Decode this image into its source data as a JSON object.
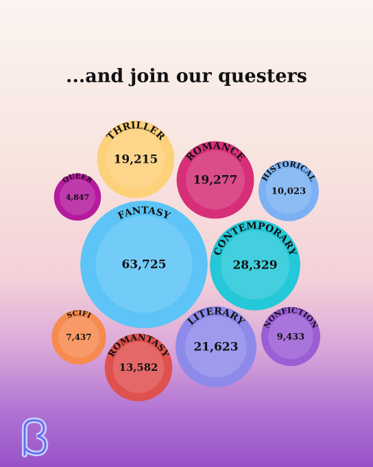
{
  "chart_data": {
    "type": "bubble",
    "title": "...and join our questers",
    "categories": [
      "THRILLER",
      "ROMANCE",
      "HISTORICAL",
      "QUEER",
      "FANTASY",
      "CONTEMPORARY",
      "SCIFI",
      "LITERARY",
      "NONFICTION",
      "ROMANTASY"
    ],
    "values": [
      19215,
      19277,
      10023,
      4847,
      63725,
      28329,
      7437,
      21623,
      9433,
      13582
    ],
    "value_labels": [
      "19,215",
      "19,277",
      "10,023",
      "4,847",
      "63,725",
      "28,329",
      "7,437",
      "21,623",
      "9,433",
      "13,582"
    ],
    "colors": [
      "#fdd07a",
      "#d62f78",
      "#7bb1f4",
      "#b51a9e",
      "#5cc4f6",
      "#25c8d8",
      "#f68a4f",
      "#8e8aea",
      "#9b5ed5",
      "#df504e"
    ]
  }
}
